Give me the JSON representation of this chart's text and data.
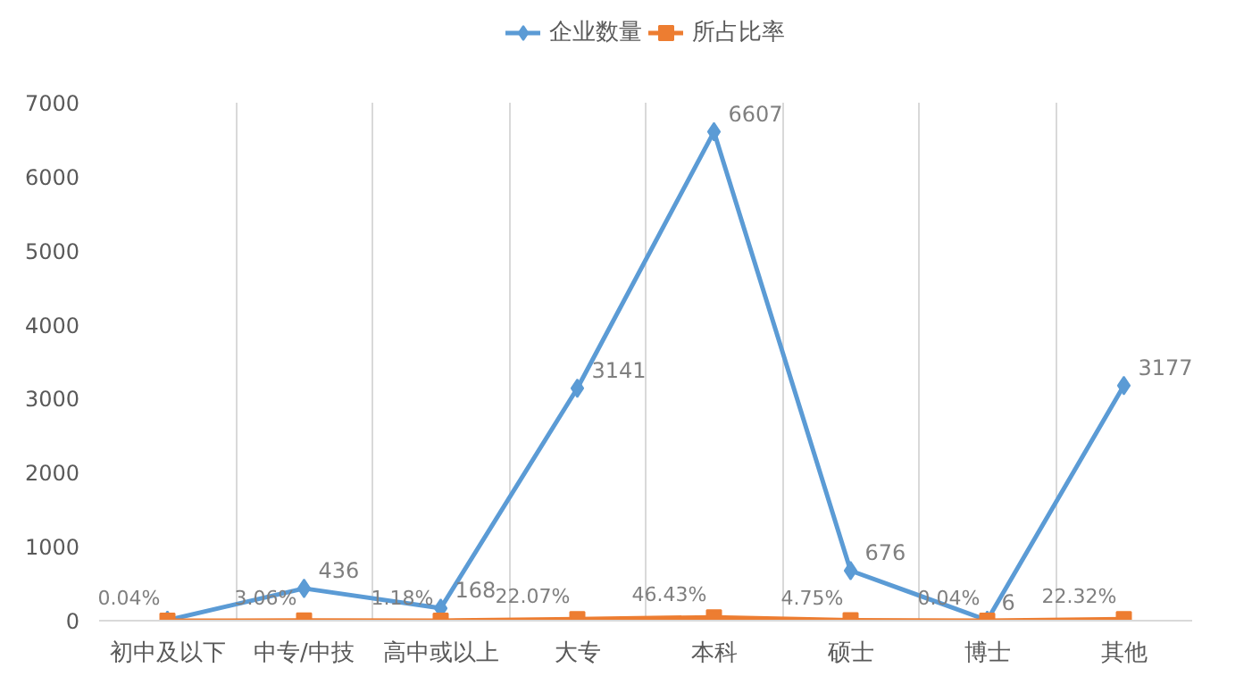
{
  "chart_data": {
    "type": "line",
    "categories": [
      "初中及以下",
      "中专/中技",
      "高中或以上",
      "大专",
      "本科",
      "硕士",
      "博士",
      "其他"
    ],
    "series": [
      {
        "name": "企业数量",
        "color": "#5b9bd5",
        "marker": "diamond",
        "values": [
          6,
          436,
          168,
          3141,
          6607,
          676,
          6,
          3177
        ],
        "value_labels": [
          null,
          "436",
          "168",
          "3141",
          "6607",
          "676",
          "6",
          "3177"
        ]
      },
      {
        "name": "所占比率",
        "color": "#ed7d31",
        "marker": "square",
        "values": [
          0.04,
          3.06,
          1.18,
          22.07,
          46.43,
          4.75,
          0.04,
          22.32
        ],
        "value_labels": [
          "0.04%",
          "3.06%",
          "1.18%",
          "22.07%",
          "46.43%",
          "4.75%",
          "0.04%",
          "22.32%"
        ]
      }
    ],
    "ylim": [
      0,
      7000
    ],
    "yticks": [
      0,
      1000,
      2000,
      3000,
      4000,
      5000,
      6000,
      7000
    ],
    "grid": "x",
    "legend": "top"
  }
}
